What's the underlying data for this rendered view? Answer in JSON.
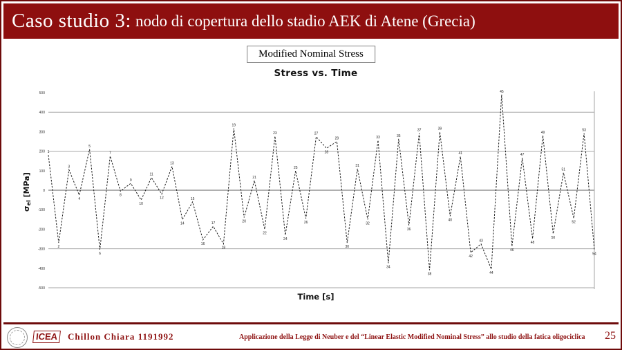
{
  "slide": {
    "header": {
      "title_lead": "Caso studio 3:",
      "title_rest": "nodo di copertura dello stadio AEK di Atene (Grecia)"
    },
    "callout": "Modified Nominal Stress",
    "footer": {
      "logo_text": "ICEA",
      "author": "Chillon Chiara 1191992",
      "course": "Applicazione della Legge di Neuber e del “Linear Elastic Modified Nominal Stress” allo studio della fatica oligociclica",
      "page_number": "25"
    },
    "colors": {
      "accent": "#8e0f0f",
      "grid": "#a6a6a6",
      "zero_line": "#7f7f7f",
      "series_line": "#1a1a1a",
      "tick_text": "#333333"
    }
  },
  "chart_data": {
    "type": "line",
    "title": "Stress vs. Time",
    "xlabel": "Time [s]",
    "ylabel": "σ_el [MPa]",
    "ylabel_sigma": "σ",
    "ylabel_sub": "el",
    "ylabel_unit": "[MPa]",
    "ylim": [
      -500,
      500
    ],
    "yticks": [
      "500",
      "400",
      "300",
      "200",
      "100",
      "0",
      "-100",
      "-200",
      "-300",
      "-400",
      "-500"
    ],
    "gridline_values": [
      400,
      200,
      0,
      -300,
      -500
    ],
    "line_style": "dashed",
    "point_labels": "index",
    "legend": "none",
    "t": [
      1,
      2,
      3,
      4,
      5,
      6,
      7,
      8,
      9,
      10,
      11,
      12,
      13,
      14,
      15,
      16,
      17,
      18,
      19,
      20,
      21,
      22,
      23,
      24,
      25,
      26,
      27,
      28,
      29,
      30,
      31,
      32,
      33,
      34,
      35,
      36,
      37,
      38,
      39,
      40,
      41,
      42,
      43,
      44,
      45,
      46,
      47,
      48,
      49,
      50,
      51,
      52,
      53,
      54
    ],
    "values": [
      180,
      -270,
      105,
      -25,
      210,
      -305,
      175,
      -5,
      35,
      -50,
      65,
      -20,
      122,
      -150,
      -60,
      -255,
      -185,
      -275,
      317,
      -140,
      50,
      -200,
      277,
      -230,
      100,
      -145,
      274,
      215,
      250,
      -270,
      110,
      -150,
      256,
      -374,
      263,
      -180,
      292,
      -410,
      299,
      -133,
      173,
      -320,
      -275,
      -405,
      490,
      -288,
      166,
      -248,
      281,
      -223,
      90,
      -144,
      292,
      -306
    ]
  }
}
